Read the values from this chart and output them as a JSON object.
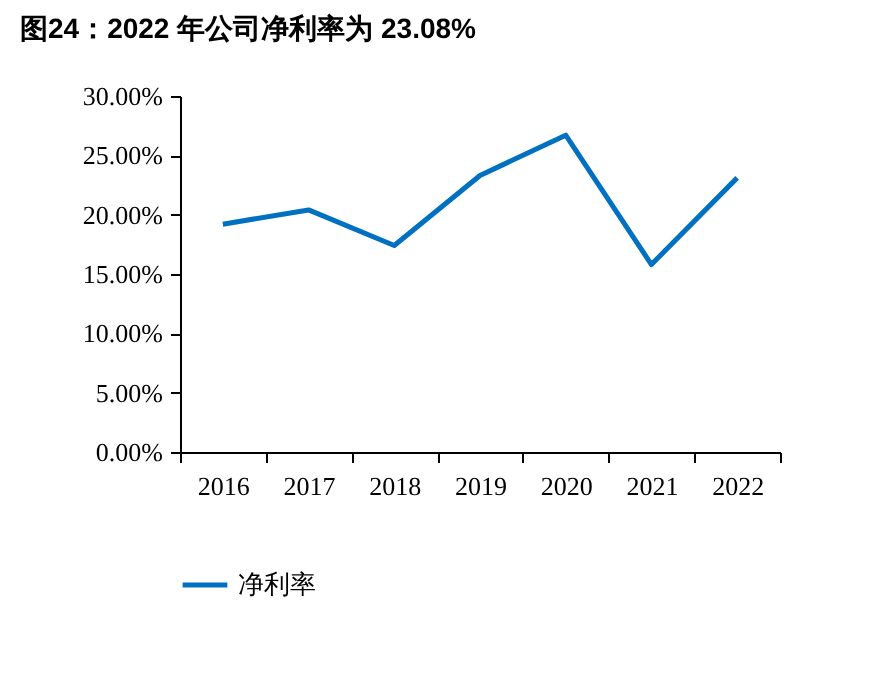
{
  "chart_data": {
    "type": "line",
    "title": "图24：2022 年公司净利率为 23.08%",
    "categories": [
      "2016",
      "2017",
      "2018",
      "2019",
      "2020",
      "2021",
      "2022"
    ],
    "series": [
      {
        "name": "净利率",
        "color": "#0070c0",
        "values": [
          19.2,
          20.4,
          17.4,
          23.3,
          26.7,
          15.8,
          23.1
        ]
      }
    ],
    "ylim": [
      0,
      30
    ],
    "yticks": [
      {
        "value": 0,
        "label": "0.00%"
      },
      {
        "value": 5,
        "label": "5.00%"
      },
      {
        "value": 10,
        "label": "10.00%"
      },
      {
        "value": 15,
        "label": "15.00%"
      },
      {
        "value": 20,
        "label": "20.00%"
      },
      {
        "value": 25,
        "label": "25.00%"
      },
      {
        "value": 30,
        "label": "30.00%"
      }
    ],
    "grid": false,
    "legend": "bottom",
    "marker": "none",
    "line_style": "solid"
  }
}
